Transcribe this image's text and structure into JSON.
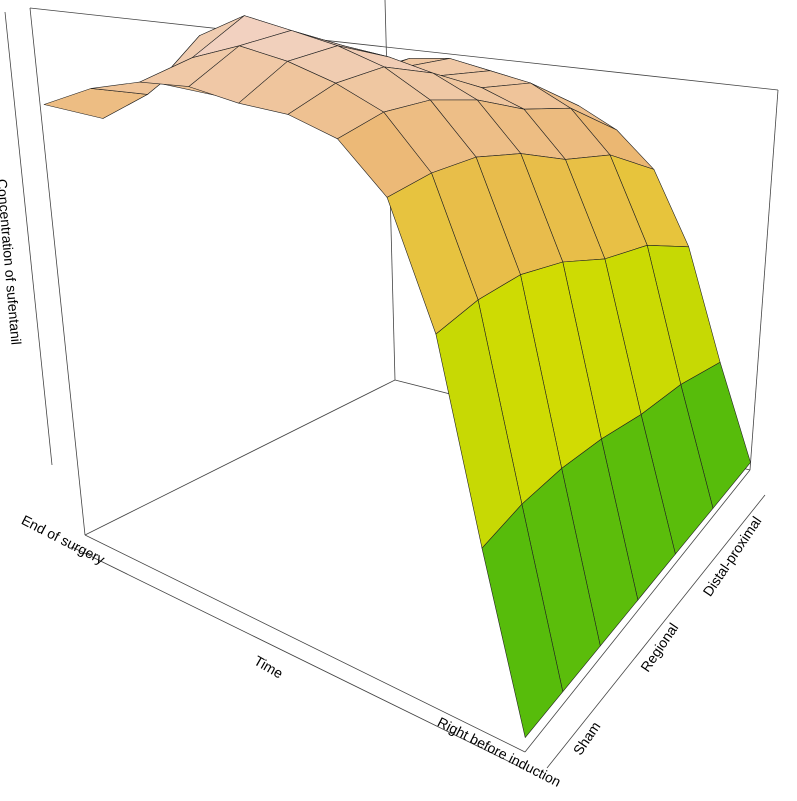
{
  "chart_data": {
    "type": "surface",
    "zlabel": "Concentration of sufentanil",
    "xlabel": "Time",
    "time_labels": [
      "End of  surgery",
      "Right before induction"
    ],
    "groups": [
      "Sham",
      "Regional",
      "Distal-proximal"
    ],
    "zlim": [
      0,
      1
    ],
    "colorscale": [
      "#0aa70a",
      "#8fcb0c",
      "#e3e000",
      "#eab262",
      "#f3d6d0"
    ],
    "z": [
      [
        0.82,
        0.78,
        0.84,
        0.8,
        0.76,
        0.82,
        0.8
      ],
      [
        0.86,
        0.84,
        0.95,
        0.86,
        0.8,
        0.85,
        0.83
      ],
      [
        0.88,
        0.92,
        1.0,
        0.92,
        0.86,
        0.9,
        0.86
      ],
      [
        0.88,
        0.95,
        0.98,
        0.95,
        0.9,
        0.92,
        0.86
      ],
      [
        0.86,
        0.93,
        0.96,
        0.94,
        0.9,
        0.91,
        0.85
      ],
      [
        0.85,
        0.9,
        0.93,
        0.92,
        0.89,
        0.9,
        0.84
      ],
      [
        0.82,
        0.86,
        0.88,
        0.88,
        0.86,
        0.86,
        0.8
      ],
      [
        0.74,
        0.77,
        0.79,
        0.79,
        0.77,
        0.77,
        0.72
      ],
      [
        0.55,
        0.58,
        0.6,
        0.6,
        0.58,
        0.58,
        0.54
      ],
      [
        0.26,
        0.28,
        0.29,
        0.29,
        0.28,
        0.28,
        0.26
      ],
      [
        0.02,
        0.02,
        0.02,
        0.02,
        0.02,
        0.02,
        0.02
      ]
    ]
  }
}
